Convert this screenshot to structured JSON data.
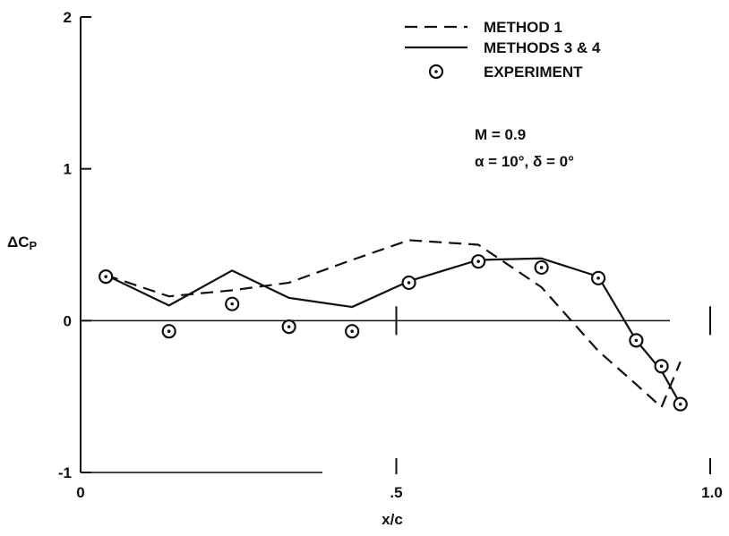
{
  "chart_data": {
    "type": "line",
    "xlabel": "x/c",
    "ylabel": "ΔCP",
    "xlim": [
      0,
      1.0
    ],
    "ylim": [
      -1,
      2
    ],
    "x_ticks": [
      {
        "value": 0,
        "label": "0"
      },
      {
        "value": 0.5,
        "label": ".5"
      },
      {
        "value": 1.0,
        "label": "1.0"
      }
    ],
    "y_ticks": [
      {
        "value": -1,
        "label": "-1"
      },
      {
        "value": 0,
        "label": "0"
      },
      {
        "value": 1,
        "label": "1"
      },
      {
        "value": 2,
        "label": "2"
      }
    ],
    "grid": false,
    "legend_position": "top-right",
    "annotations": [
      "M = 0.9",
      "α = 10°, δ = 0°"
    ],
    "series": [
      {
        "name": "METHOD 1",
        "style": "dashed",
        "x": [
          0.04,
          0.14,
          0.24,
          0.33,
          0.43,
          0.52,
          0.63,
          0.73,
          0.82,
          0.88,
          0.92,
          0.95
        ],
        "y": [
          0.3,
          0.16,
          0.2,
          0.25,
          0.4,
          0.53,
          0.5,
          0.22,
          -0.2,
          -0.42,
          -0.57,
          -0.27
        ]
      },
      {
        "name": "METHODS 3 & 4",
        "style": "solid",
        "x": [
          0.04,
          0.14,
          0.24,
          0.33,
          0.43,
          0.52,
          0.63,
          0.73,
          0.82,
          0.88,
          0.92,
          0.95
        ],
        "y": [
          0.3,
          0.1,
          0.33,
          0.15,
          0.09,
          0.26,
          0.4,
          0.41,
          0.29,
          -0.13,
          -0.33,
          -0.55
        ]
      },
      {
        "name": "EXPERIMENT",
        "style": "markers",
        "marker": "circle-dot",
        "x": [
          0.04,
          0.14,
          0.24,
          0.33,
          0.43,
          0.52,
          0.63,
          0.73,
          0.82,
          0.88,
          0.92,
          0.95
        ],
        "y": [
          0.29,
          -0.07,
          0.11,
          -0.04,
          -0.07,
          0.25,
          0.39,
          0.35,
          0.28,
          -0.13,
          -0.3,
          -0.55
        ]
      }
    ]
  }
}
